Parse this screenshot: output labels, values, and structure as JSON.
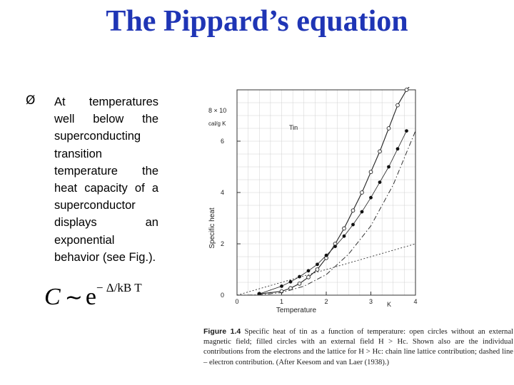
{
  "slide": {
    "title": "The Pippard’s equation",
    "bullet_marker": "Ø",
    "bullet_text": "At temperatures well below the superconducting transition temperature the heat capacity of a superconductor displays an exponential behavior (see Fig.).",
    "formula": {
      "lhs": "C",
      "relation": "∼",
      "base": "e",
      "exponent": "− Δ/kB T"
    }
  },
  "figure": {
    "caption_label": "Figure 1.4",
    "caption_text": "Specific heat of tin as a function of temperature: open circles without an external magnetic field; filled circles with an external field H > Hc. Shown also are the individual contributions from the electrons and the lattice for H > Hc: chain line lattice contribution; dashed line – electron contribution. (After Keesom and van Laer (1938).)"
  },
  "chart_data": {
    "type": "line",
    "title": "",
    "annotation": "Tin",
    "xlabel": "Temperature",
    "x_unit": "K",
    "ylabel": "Specific heat",
    "y_top_label": "8 × 10",
    "y_unit": "cal/g K",
    "xlim": [
      0,
      4
    ],
    "ylim": [
      0,
      8
    ],
    "x_ticks": [
      "0",
      "1",
      "2",
      "3",
      "4"
    ],
    "y_ticks": [
      "0",
      "2",
      "4",
      "6"
    ],
    "grid": true,
    "series": [
      {
        "style": "solid-open-circles",
        "x": [
          0.5,
          1.0,
          1.2,
          1.4,
          1.6,
          1.8,
          2.0,
          2.2,
          2.4,
          2.6,
          2.8,
          3.0,
          3.2,
          3.4,
          3.6,
          3.8,
          3.9
        ],
        "y": [
          0.05,
          0.15,
          0.27,
          0.45,
          0.7,
          1.0,
          1.45,
          2.0,
          2.6,
          3.3,
          4.0,
          4.8,
          5.6,
          6.5,
          7.4,
          8.0,
          8.2
        ]
      },
      {
        "style": "filled-circles",
        "x": [
          0.5,
          1.0,
          1.2,
          1.4,
          1.6,
          1.8,
          2.0,
          2.2,
          2.4,
          2.6,
          2.8,
          3.0,
          3.2,
          3.4,
          3.6,
          3.8
        ],
        "y": [
          0.05,
          0.35,
          0.52,
          0.72,
          0.95,
          1.2,
          1.55,
          1.9,
          2.3,
          2.75,
          3.25,
          3.8,
          4.4,
          5.0,
          5.7,
          6.4
        ]
      },
      {
        "style": "chain-line",
        "x": [
          0,
          0.5,
          1.0,
          1.5,
          2.0,
          2.5,
          3.0,
          3.5,
          4.0
        ],
        "y": [
          0,
          0.01,
          0.1,
          0.35,
          0.8,
          1.6,
          2.7,
          4.3,
          6.4
        ]
      },
      {
        "style": "dashed-line",
        "x": [
          0,
          1.0,
          2.0,
          3.0,
          4.0
        ],
        "y": [
          0,
          0.5,
          1.0,
          1.5,
          2.0
        ]
      }
    ]
  }
}
